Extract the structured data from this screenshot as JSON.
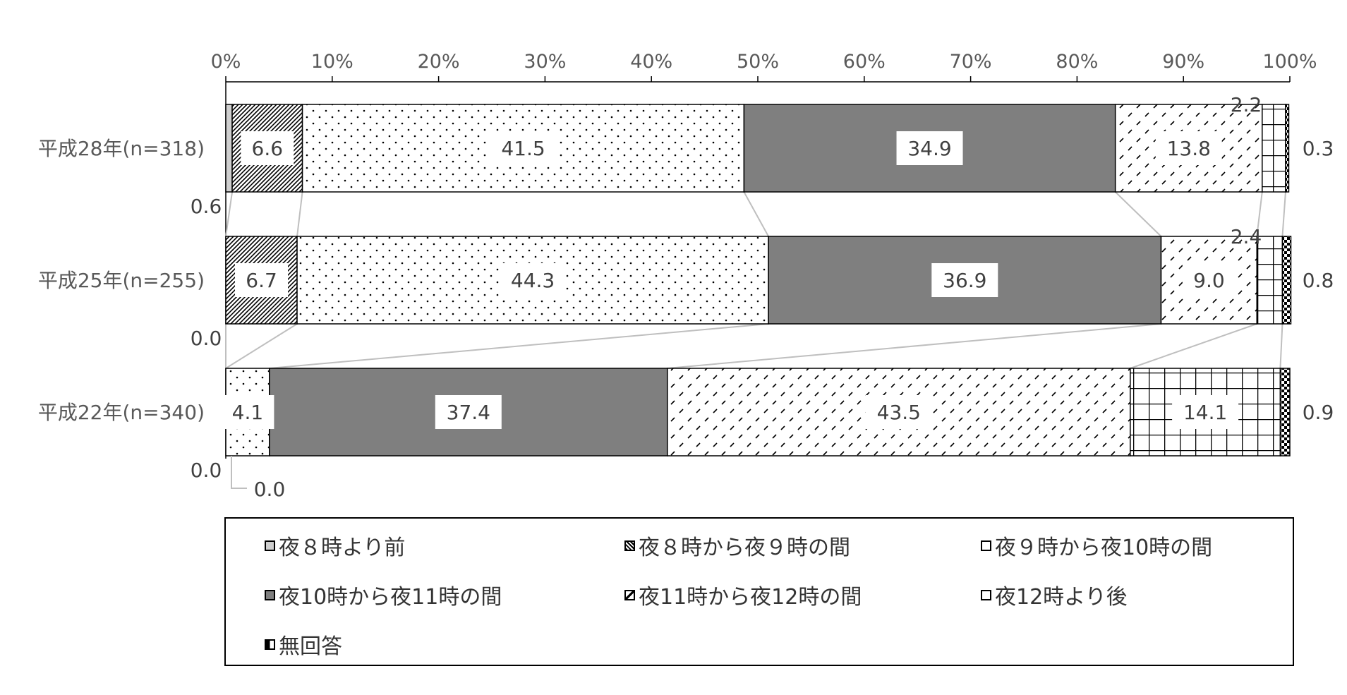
{
  "chart_data": {
    "type": "bar",
    "orientation": "horizontal",
    "stacked": "percent",
    "xlim": [
      0,
      100
    ],
    "xticks": [
      "0%",
      "10%",
      "20%",
      "30%",
      "40%",
      "50%",
      "60%",
      "70%",
      "80%",
      "90%",
      "100%"
    ],
    "categories": [
      "平成28年(n=318)",
      "平成25年(n=255)",
      "平成22年(n=340)"
    ],
    "series": [
      {
        "name": "夜８時より前",
        "values": [
          0.6,
          0.0,
          0.0
        ],
        "labels": [
          "0.6",
          "0.0",
          "0.0"
        ],
        "color": "#d0d0d0",
        "pattern": "solid-light"
      },
      {
        "name": "夜８時から夜９時の間",
        "values": [
          6.6,
          6.7,
          0.0
        ],
        "labels": [
          "6.6",
          "6.7",
          "0.0"
        ],
        "color": "#ffffff",
        "pattern": "diagonal-dense"
      },
      {
        "name": "夜９時から夜10時の間",
        "values": [
          41.5,
          44.3,
          4.1
        ],
        "labels": [
          "41.5",
          "44.3",
          "4.1"
        ],
        "color": "#ffffff",
        "pattern": "dots"
      },
      {
        "name": "夜10時から夜11時の間",
        "values": [
          34.9,
          36.9,
          37.4
        ],
        "labels": [
          "34.9",
          "36.9",
          "37.4"
        ],
        "color": "#808080",
        "pattern": "solid-dark"
      },
      {
        "name": "夜11時から夜12時の間",
        "values": [
          13.8,
          9.0,
          43.5
        ],
        "labels": [
          "13.8",
          "9.0",
          "43.5"
        ],
        "color": "#ffffff",
        "pattern": "dashes"
      },
      {
        "name": "夜12時より後",
        "values": [
          2.2,
          2.4,
          14.1
        ],
        "labels": [
          "2.2",
          "2.4",
          "14.1"
        ],
        "color": "#ffffff",
        "pattern": "grid"
      },
      {
        "name": "無回答",
        "values": [
          0.3,
          0.8,
          0.9
        ],
        "labels": [
          "0.3",
          "0.8",
          "0.9"
        ],
        "color": "#000000",
        "pattern": "checker"
      }
    ],
    "legend_position": "bottom",
    "grid": false
  }
}
